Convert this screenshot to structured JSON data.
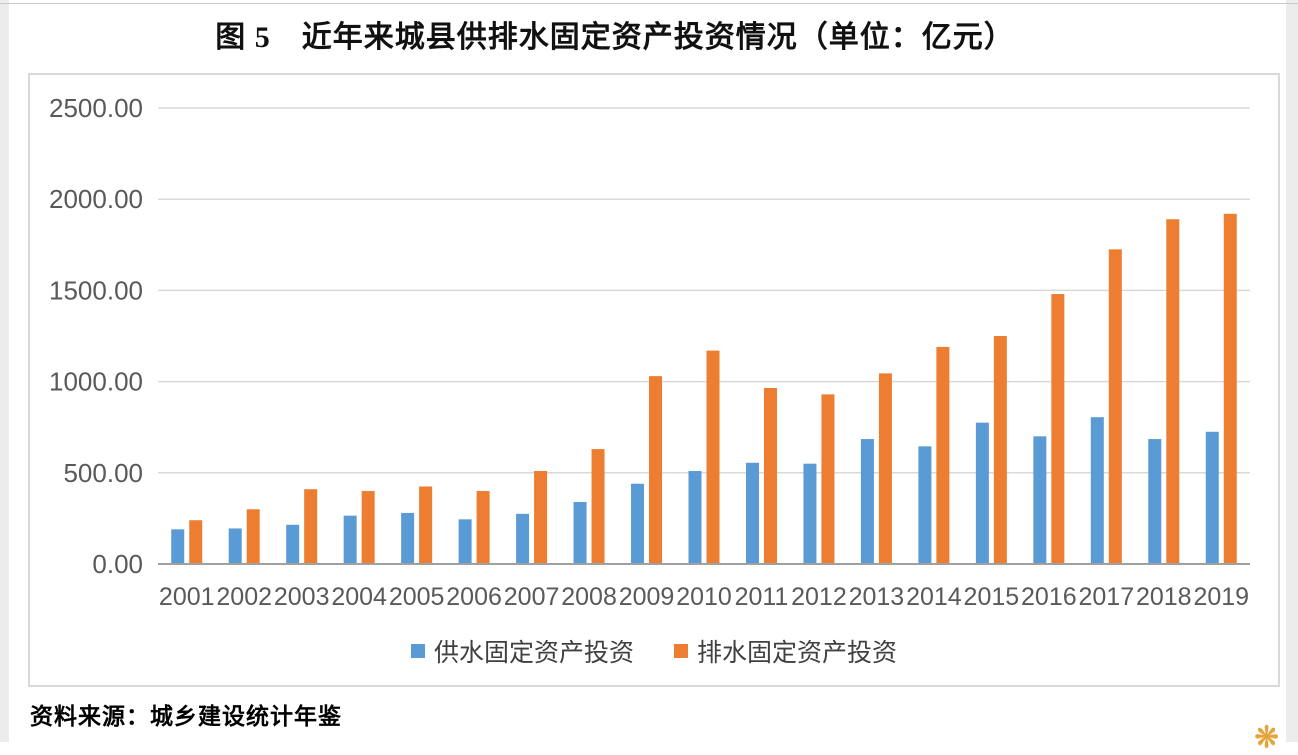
{
  "chart_data": {
    "type": "bar",
    "title": "图 5　近年来城县供排水固定资产投资情况（单位：亿元）",
    "categories": [
      "2001",
      "2002",
      "2003",
      "2004",
      "2005",
      "2006",
      "2007",
      "2008",
      "2009",
      "2010",
      "2011",
      "2012",
      "2013",
      "2014",
      "2015",
      "2016",
      "2017",
      "2018",
      "2019"
    ],
    "series": [
      {
        "name": "供水固定资产投资",
        "color": "#5B9BD5",
        "values": [
          190,
          195,
          215,
          265,
          280,
          245,
          275,
          340,
          440,
          510,
          555,
          550,
          685,
          645,
          775,
          700,
          805,
          685,
          725
        ]
      },
      {
        "name": "排水固定资产投资",
        "color": "#ED7D31",
        "values": [
          240,
          300,
          410,
          400,
          425,
          400,
          510,
          630,
          1030,
          1170,
          965,
          930,
          1045,
          1190,
          1250,
          1480,
          1725,
          1890,
          1920
        ]
      }
    ],
    "ylim": [
      0,
      2500
    ],
    "ytick_step": 500,
    "ytick_decimals": 2,
    "xlabel": "",
    "ylabel": "",
    "grid": true,
    "legend_position": "bottom",
    "axis_label_color": "#595959",
    "gridline_color": "#d9d9d9",
    "axis_line_color": "#a0a0a0"
  },
  "source_note": "资料来源：城乡建设统计年鉴",
  "decor": {
    "watermark_icon": "❋"
  }
}
